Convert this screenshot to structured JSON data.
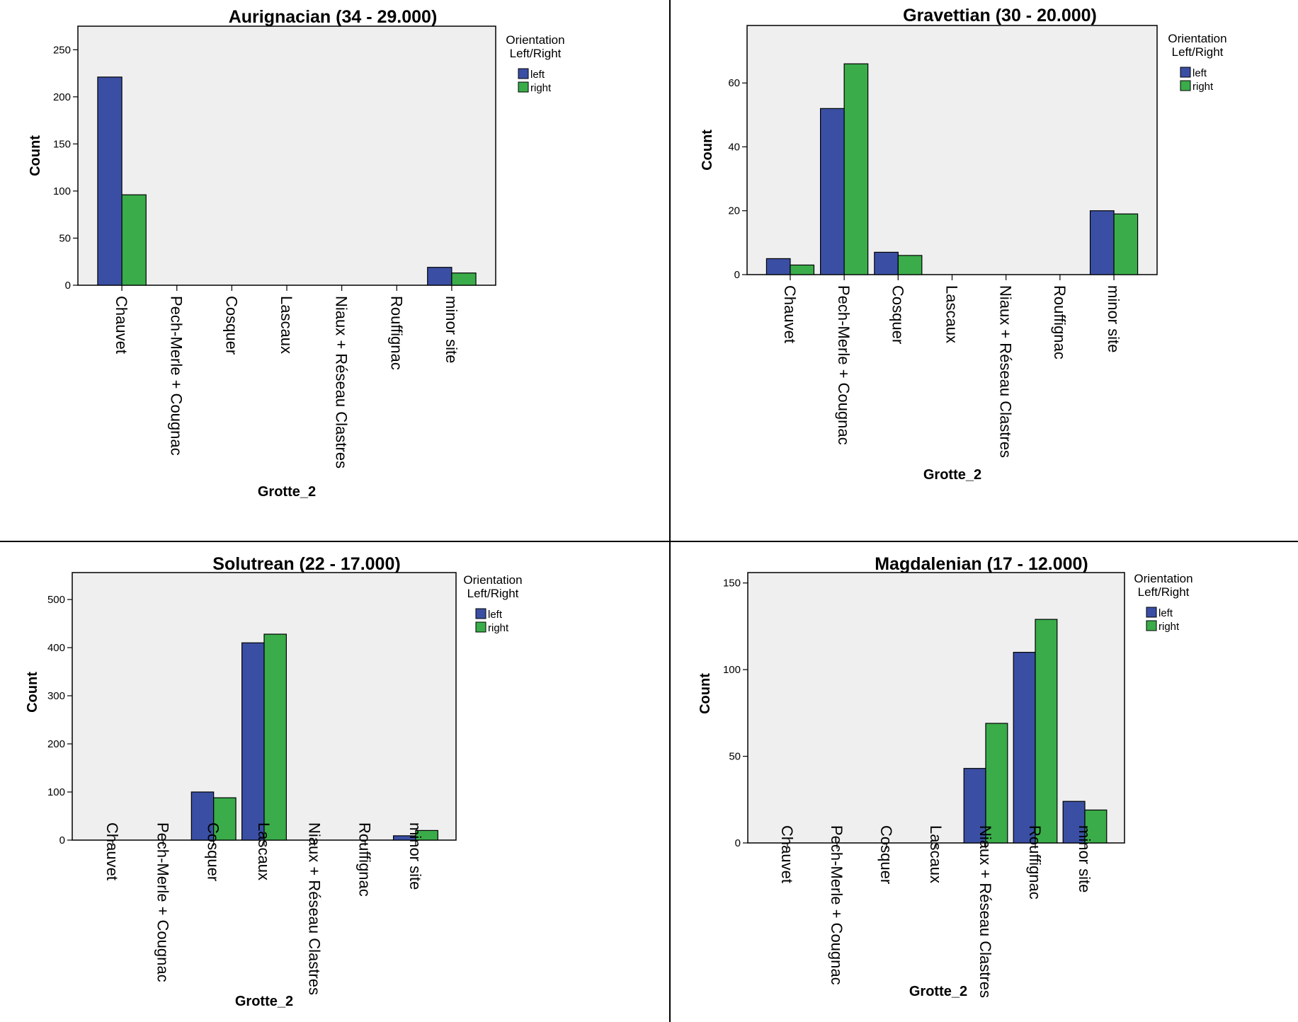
{
  "colors": {
    "left": "#3a4fa3",
    "right": "#3aac4a",
    "plot_bg": "#efeff0"
  },
  "chart_data": [
    {
      "type": "bar",
      "title": "Aurignacian (34 - 29.000)",
      "xlabel": "Grotte_2",
      "ylabel": "Count",
      "ylim": [
        0,
        275
      ],
      "yticks": [
        0,
        50,
        100,
        150,
        200,
        250
      ],
      "categories": [
        "Chauvet",
        "Pech-Merle + Cougnac",
        "Cosquer",
        "Lascaux",
        "Niaux + Réseau Clastres",
        "Rouffignac",
        "minor site"
      ],
      "legend": {
        "title_line1": "Orientation",
        "title_line2": "Left/Right",
        "position": "right"
      },
      "series": [
        {
          "name": "left",
          "values": [
            221,
            0,
            0,
            0,
            0,
            0,
            19
          ]
        },
        {
          "name": "right",
          "values": [
            96,
            0,
            0,
            0,
            0,
            0,
            13
          ]
        }
      ]
    },
    {
      "type": "bar",
      "title": "Gravettian (30 - 20.000)",
      "xlabel": "Grotte_2",
      "ylabel": "Count",
      "ylim": [
        0,
        78
      ],
      "yticks": [
        0,
        20,
        40,
        60
      ],
      "categories": [
        "Chauvet",
        "Pech-Merle + Cougnac",
        "Cosquer",
        "Lascaux",
        "Niaux + Réseau Clastres",
        "Rouffignac",
        "minor site"
      ],
      "legend": {
        "title_line1": "Orientation",
        "title_line2": "Left/Right",
        "position": "right"
      },
      "series": [
        {
          "name": "left",
          "values": [
            5,
            52,
            7,
            0,
            0,
            0,
            20
          ]
        },
        {
          "name": "right",
          "values": [
            3,
            66,
            6,
            0,
            0,
            0,
            19
          ]
        }
      ]
    },
    {
      "type": "bar",
      "title": "Solutrean (22 - 17.000)",
      "xlabel": "Grotte_2",
      "ylabel": "Count",
      "ylim": [
        0,
        556
      ],
      "yticks": [
        0,
        100,
        200,
        300,
        400,
        500
      ],
      "categories": [
        "Chauvet",
        "Pech-Merle + Cougnac",
        "Cosquer",
        "Lascaux",
        "Niaux + Réseau Clastres",
        "Rouffignac",
        "minor site"
      ],
      "legend": {
        "title_line1": "Orientation",
        "title_line2": "Left/Right",
        "position": "right"
      },
      "series": [
        {
          "name": "left",
          "values": [
            0,
            0,
            100,
            410,
            0,
            0,
            9
          ]
        },
        {
          "name": "right",
          "values": [
            0,
            0,
            88,
            428,
            0,
            0,
            20
          ]
        }
      ]
    },
    {
      "type": "bar",
      "title": "Magdalenian (17 - 12.000)",
      "xlabel": "Grotte_2",
      "ylabel": "Count",
      "ylim": [
        0,
        156
      ],
      "yticks": [
        0,
        50,
        100,
        150
      ],
      "categories": [
        "Chauvet",
        "Pech-Merle + Cougnac",
        "Cosquer",
        "Lascaux",
        "Niaux + Réseau Clastres",
        "Rouffignac",
        "minor site"
      ],
      "legend": {
        "title_line1": "Orientation",
        "title_line2": "Left/Right",
        "position": "right"
      },
      "series": [
        {
          "name": "left",
          "values": [
            0,
            0,
            0,
            0,
            43,
            110,
            24
          ]
        },
        {
          "name": "right",
          "values": [
            0,
            0,
            0,
            0,
            69,
            129,
            19
          ]
        }
      ]
    }
  ]
}
